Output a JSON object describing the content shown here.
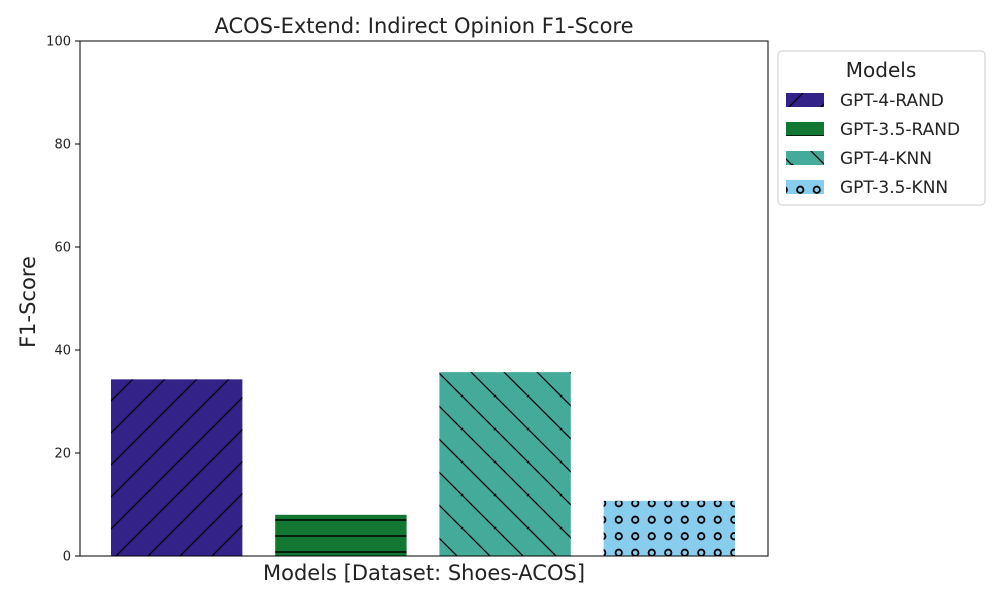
{
  "chart_data": {
    "type": "bar",
    "title": "ACOS-Extend: Indirect Opinion F1-Score",
    "xlabel": "Models [Dataset: Shoes-ACOS]",
    "ylabel": "F1-Score",
    "ylim": [
      0,
      100
    ],
    "yticks": [
      "0",
      "20",
      "40",
      "60",
      "80",
      "100"
    ],
    "grid": false,
    "legend": {
      "title": "Models",
      "placement": "outside-right-top"
    },
    "series": [
      {
        "name": "GPT-4-RAND",
        "value": 34.3,
        "color": "#332288",
        "hatch": "forward-diagonal"
      },
      {
        "name": "GPT-3.5-RAND",
        "value": 8.0,
        "color": "#117733",
        "hatch": "horizontal"
      },
      {
        "name": "GPT-4-KNN",
        "value": 35.7,
        "color": "#44AA99",
        "hatch": "back-diagonal"
      },
      {
        "name": "GPT-3.5-KNN",
        "value": 10.7,
        "color": "#88CCEE",
        "hatch": "circles"
      }
    ]
  }
}
